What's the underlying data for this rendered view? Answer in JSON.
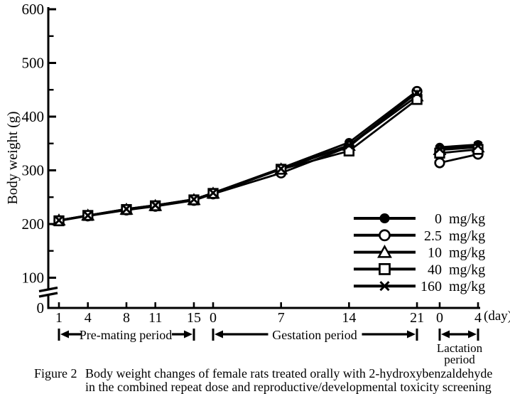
{
  "figure": {
    "caption_label": "Figure 2",
    "caption_line1": "Body weight changes of female rats treated orally with 2-hydroxybenzaldehyde",
    "caption_line2": "in the combined repeat dose and reproductive/developmental toxicity screening test"
  },
  "annotations": {
    "lactation_line1": "Lactation",
    "lactation_line2": "period"
  },
  "colors": {
    "ink": "#000000",
    "background": "#ffffff"
  },
  "chart_data": {
    "type": "line",
    "title": "",
    "ylabel": "Body weight (g)",
    "x_unit_label": "(day)",
    "ylim": [
      0,
      600
    ],
    "y_major_ticks": [
      0,
      100,
      200,
      300,
      400,
      500,
      600
    ],
    "y_minor_ticks": [
      150,
      250,
      350,
      450,
      550
    ],
    "y_axis_break": true,
    "grid": false,
    "legend_position": "lower right",
    "legend": {
      "unit": "mg/kg"
    },
    "segments": [
      {
        "label": "Pre-mating period",
        "days": [
          1,
          4,
          8,
          11,
          15
        ]
      },
      {
        "label": "Gestation period",
        "days": [
          0,
          7,
          14,
          21
        ]
      },
      {
        "label": "Lactation period",
        "days": [
          0,
          4
        ]
      }
    ],
    "series": [
      {
        "name": "0 mg/kg",
        "dose_label": "0",
        "marker": "circle-filled",
        "values": [
          [
            207,
            216,
            228,
            235,
            246
          ],
          [
            258,
            304,
            352,
            448
          ],
          [
            343,
            348
          ]
        ]
      },
      {
        "name": "2.5 mg/kg",
        "dose_label": "2.5",
        "marker": "circle-open",
        "values": [
          [
            206,
            215,
            226,
            233,
            244
          ],
          [
            256,
            295,
            344,
            447
          ],
          [
            314,
            330
          ]
        ]
      },
      {
        "name": "10 mg/kg",
        "dose_label": "10",
        "marker": "triangle-open",
        "values": [
          [
            207,
            216,
            227,
            234,
            245
          ],
          [
            257,
            302,
            346,
            438
          ],
          [
            338,
            343
          ]
        ]
      },
      {
        "name": "40 mg/kg",
        "dose_label": "40",
        "marker": "square-open",
        "values": [
          [
            206,
            216,
            227,
            234,
            245
          ],
          [
            257,
            302,
            336,
            432
          ],
          [
            332,
            339
          ]
        ]
      },
      {
        "name": "160 mg/kg",
        "dose_label": "160",
        "marker": "x",
        "values": [
          [
            207,
            216,
            228,
            235,
            246
          ],
          [
            258,
            303,
            347,
            444
          ],
          [
            340,
            346
          ]
        ]
      }
    ]
  }
}
